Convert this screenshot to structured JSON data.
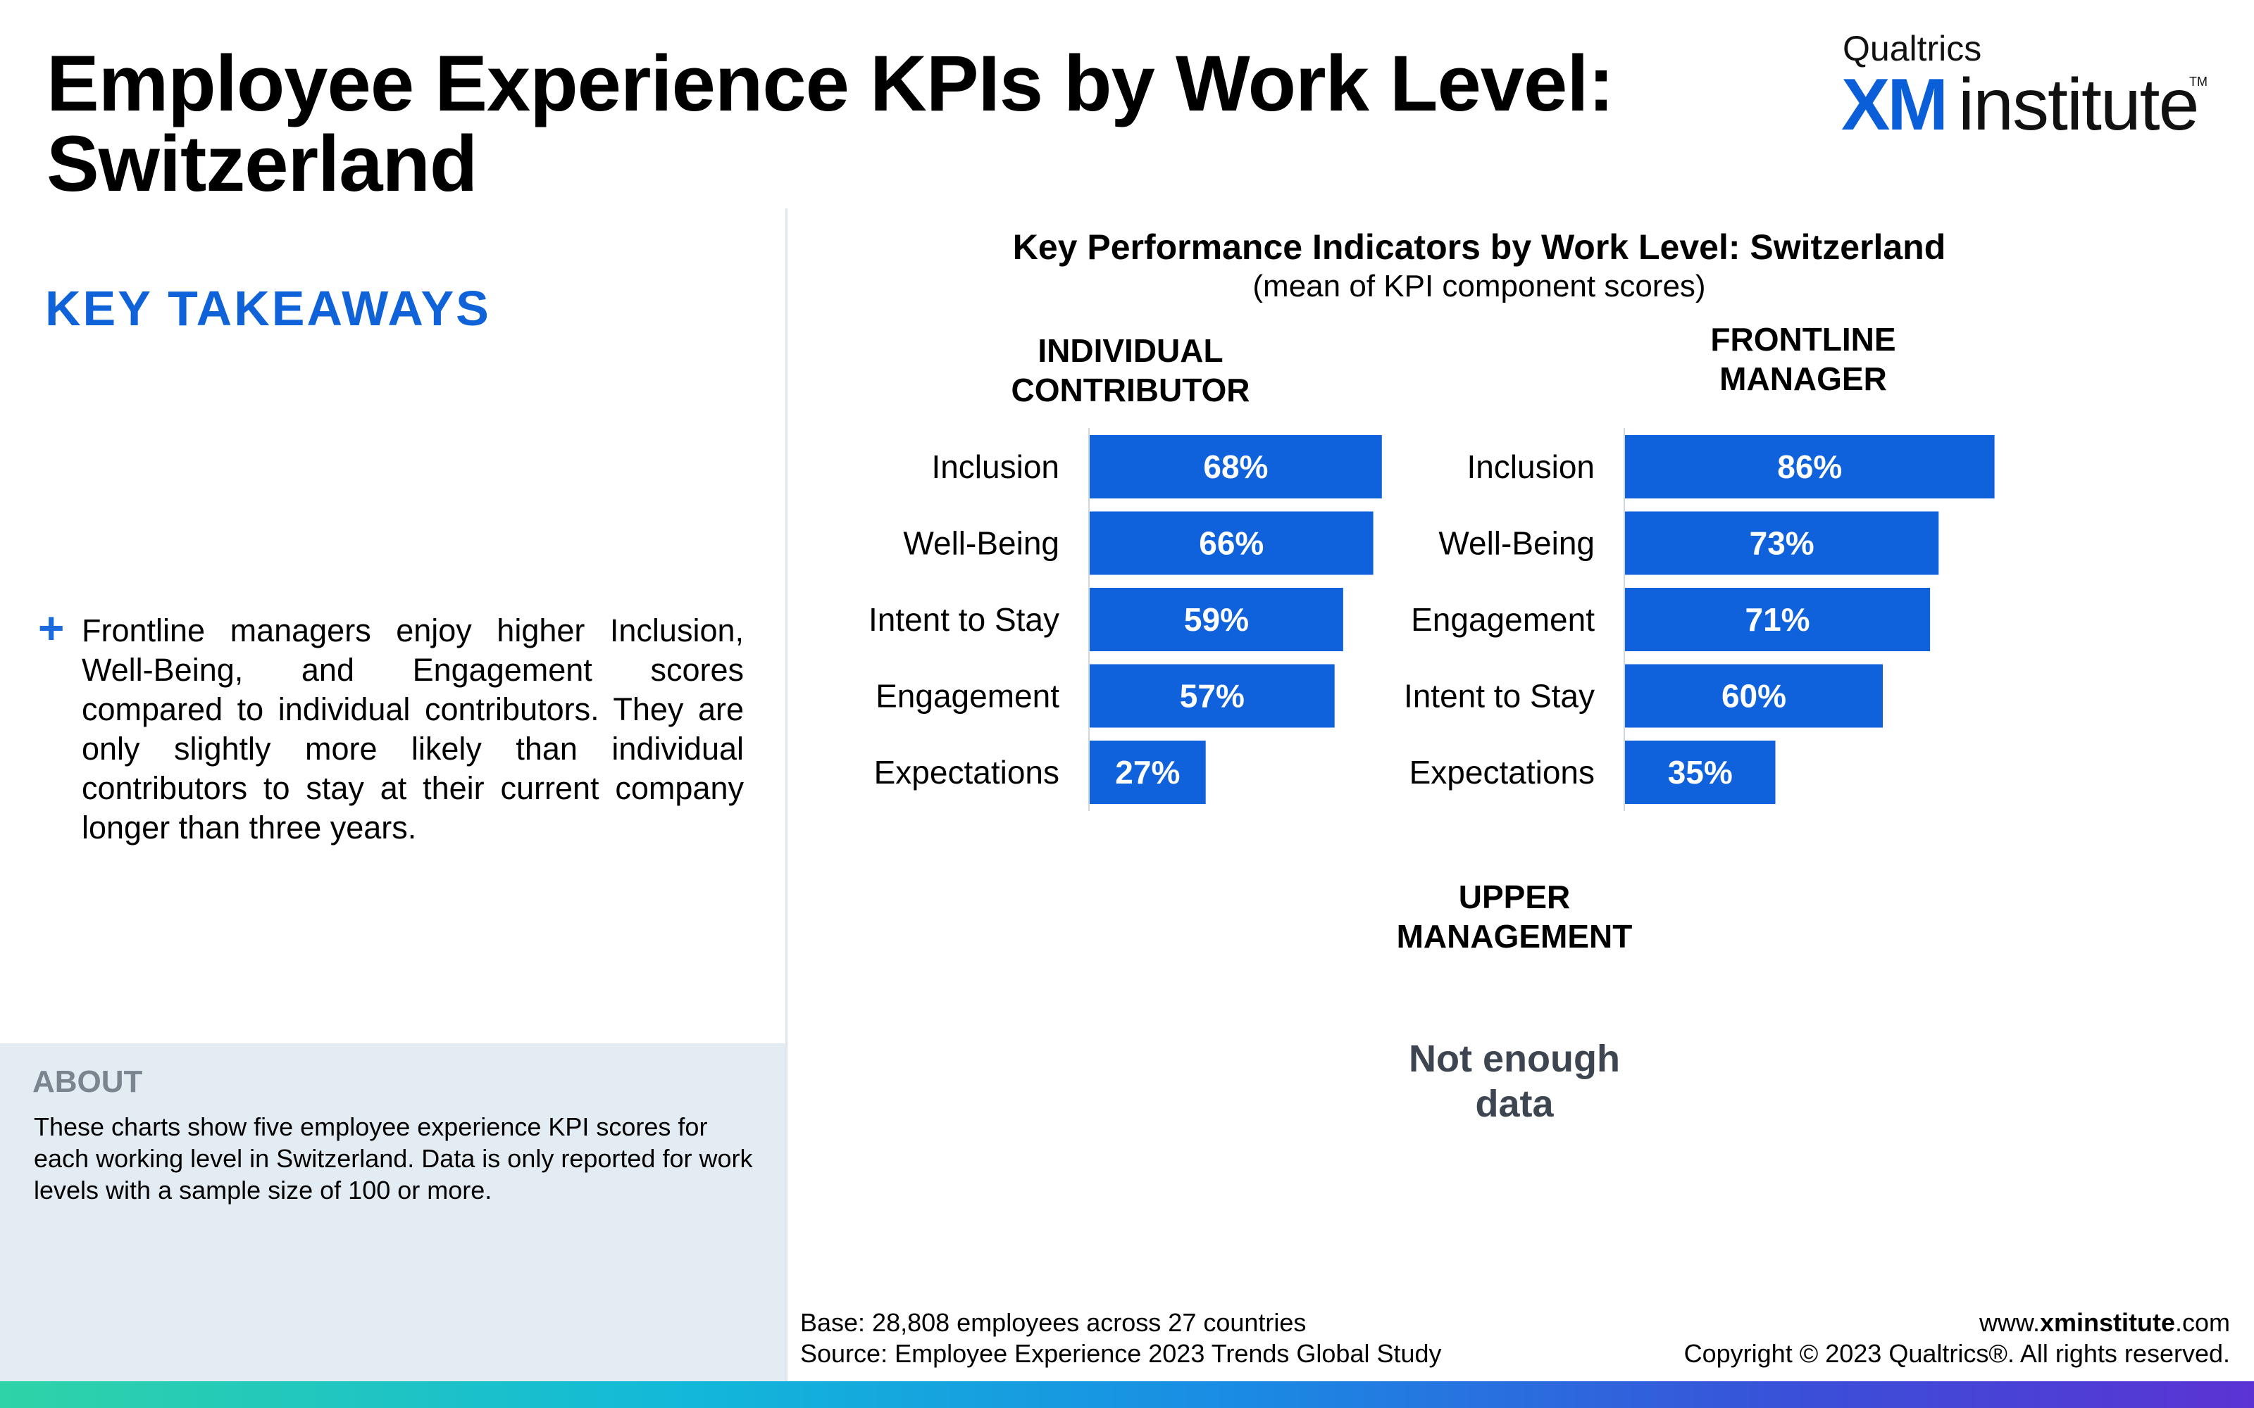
{
  "page": {
    "title_line1": "Employee Experience KPIs by Work Level:",
    "title_line2": "Switzerland"
  },
  "logo": {
    "brand": "Qualtrics",
    "xm": "XM",
    "institute": "institute",
    "tm": "TM"
  },
  "takeaways": {
    "heading": "KEY TAKEAWAYS",
    "bullet_icon": "plus-icon",
    "text": "Frontline managers enjoy higher Inclusion, Well-Being, and Engagement scores compared to individual contributors. They are only slightly more likely than individual contributors to stay at their current company longer than three years."
  },
  "about": {
    "heading": "ABOUT",
    "text": "These charts show five employee experience KPI scores for each working level in Switzerland. Data is only reported for work levels with a sample size of 100 or more."
  },
  "footer": {
    "base": "Base: 28,808 employees across 27 countries",
    "source": "Source: Employee Experience 2023 Trends Global Study",
    "url_prefix": "www.",
    "url_bold": "xminstitute",
    "url_suffix": ".com",
    "copyright": "Copyright © 2023 Qualtrics®. All rights reserved."
  },
  "colors": {
    "bar": "#0f62dc",
    "accent": "#0f62d8",
    "about_bg": "#e3ebf3"
  },
  "chart_data": {
    "type": "bar",
    "orientation": "horizontal",
    "title": "Key Performance Indicators by Work Level: Switzerland",
    "subtitle": "(mean of KPI component scores)",
    "value_format": "percent",
    "xlim": [
      0,
      100
    ],
    "panels": [
      {
        "name_line1": "INDIVIDUAL",
        "name_line2": "CONTRIBUTOR",
        "categories": [
          "Inclusion",
          "Well-Being",
          "Intent to Stay",
          "Engagement",
          "Expectations"
        ],
        "values": [
          68,
          66,
          59,
          57,
          27
        ],
        "labels": [
          "68%",
          "66%",
          "59%",
          "57%",
          "27%"
        ]
      },
      {
        "name_line1": "FRONTLINE",
        "name_line2": "MANAGER",
        "categories": [
          "Inclusion",
          "Well-Being",
          "Engagement",
          "Intent to Stay",
          "Expectations"
        ],
        "values": [
          86,
          73,
          71,
          60,
          35
        ],
        "labels": [
          "86%",
          "73%",
          "71%",
          "60%",
          "35%"
        ]
      },
      {
        "name_line1": "UPPER",
        "name_line2": "MANAGEMENT",
        "no_data_line1": "Not enough",
        "no_data_line2": "data"
      }
    ]
  }
}
